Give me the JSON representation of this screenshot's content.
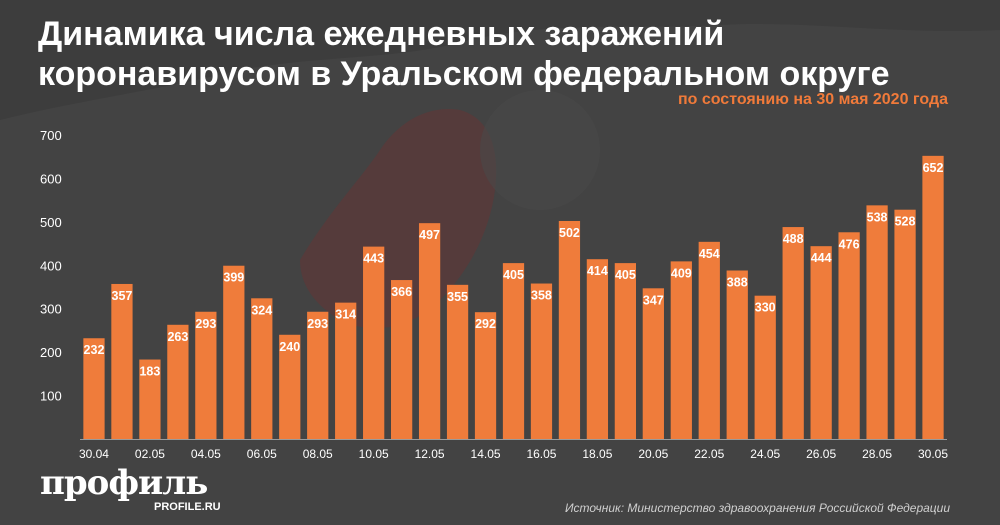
{
  "title_line1": "Динамика числа ежедневных заражений",
  "title_line2": "коронавирусом в Уральском федеральном округе",
  "subtitle": "по состоянию на 30 мая 2020 года",
  "brand": {
    "name": "профиль",
    "url": "PROFILE.RU"
  },
  "source": "Источник: Министерство здравоохранения Российской Федерации",
  "colors": {
    "bar": "#ef7c3b",
    "background": "#3d3d3d",
    "accent": "#f07a3a"
  },
  "chart_data": {
    "type": "bar",
    "categories": [
      "30.04",
      "01.05",
      "02.05",
      "03.05",
      "04.05",
      "05.05",
      "06.05",
      "07.05",
      "08.05",
      "09.05",
      "10.05",
      "11.05",
      "12.05",
      "13.05",
      "14.05",
      "15.05",
      "16.05",
      "17.05",
      "18.05",
      "19.05",
      "20.05",
      "21.05",
      "22.05",
      "23.05",
      "24.05",
      "25.05",
      "26.05",
      "27.05",
      "28.05",
      "29.05",
      "30.05"
    ],
    "x_tick_labels": [
      "30.04",
      "",
      "02.05",
      "",
      "04.05",
      "",
      "06.05",
      "",
      "08.05",
      "",
      "10.05",
      "",
      "12.05",
      "",
      "14.05",
      "",
      "16.05",
      "",
      "18.05",
      "",
      "20.05",
      "",
      "22.05",
      "",
      "24.05",
      "",
      "26.05",
      "",
      "28.05",
      "",
      "30.05"
    ],
    "values": [
      232,
      357,
      183,
      263,
      293,
      399,
      324,
      240,
      293,
      314,
      443,
      366,
      497,
      355,
      292,
      405,
      358,
      502,
      414,
      405,
      347,
      409,
      454,
      388,
      330,
      488,
      444,
      476,
      538,
      528,
      652
    ],
    "y_ticks": [
      "100",
      "200",
      "300",
      "400",
      "500",
      "600",
      "700"
    ],
    "y_tick_values": [
      100,
      200,
      300,
      400,
      500,
      600,
      700
    ],
    "ylim": [
      0,
      700
    ],
    "grid": false,
    "data_labels": true
  }
}
